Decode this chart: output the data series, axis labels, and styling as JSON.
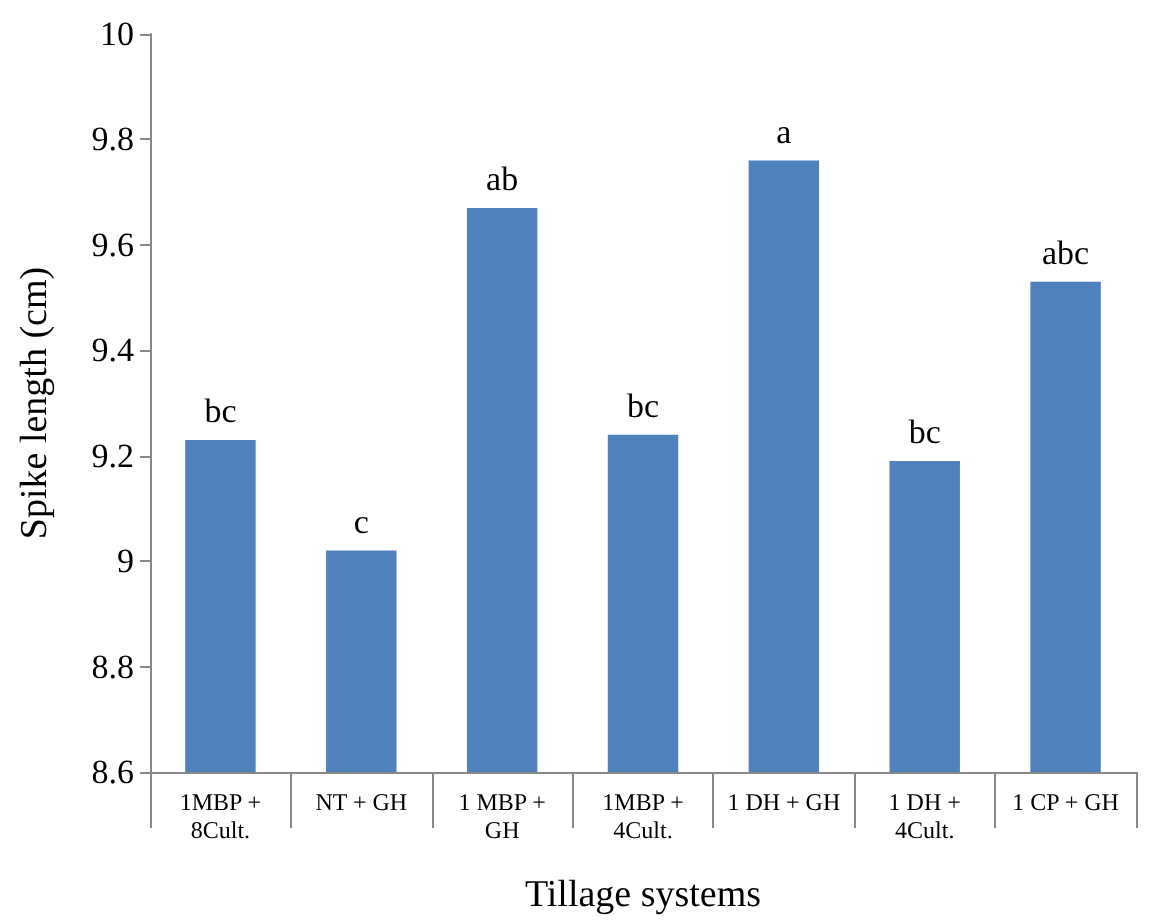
{
  "chart_data": {
    "type": "bar",
    "xlabel": "Tillage systems",
    "ylabel": "Spike length (cm)",
    "categories": [
      "1MBP +\n8Cult.",
      "NT + GH",
      "1 MBP +\nGH",
      "1MBP +\n4Cult.",
      "1 DH + GH",
      "1 DH +\n4Cult.",
      "1 CP + GH"
    ],
    "values": [
      9.23,
      9.02,
      9.67,
      9.24,
      9.76,
      9.19,
      9.53
    ],
    "color": "#4f81bd",
    "ylim": [
      8.6,
      10
    ],
    "yticks": [
      8.6,
      8.8,
      9,
      9.2,
      9.4,
      9.6,
      9.8,
      10
    ],
    "grid": false,
    "annotations": [
      {
        "text": "bc",
        "x": "1MBP +\n8Cult.",
        "y": 9.23
      },
      {
        "text": "c",
        "x": "NT + GH",
        "y": 9.02
      },
      {
        "text": "ab",
        "x": "1 MBP +\nGH",
        "y": 9.67
      },
      {
        "text": "bc",
        "x": "1MBP +\n4Cult.",
        "y": 9.24
      },
      {
        "text": "a",
        "x": "1 DH + GH",
        "y": 9.76
      },
      {
        "text": "bc",
        "x": "1 DH +\n4Cult.",
        "y": 9.19
      },
      {
        "text": "abc",
        "x": "1 CP + GH",
        "y": 9.53
      }
    ]
  }
}
